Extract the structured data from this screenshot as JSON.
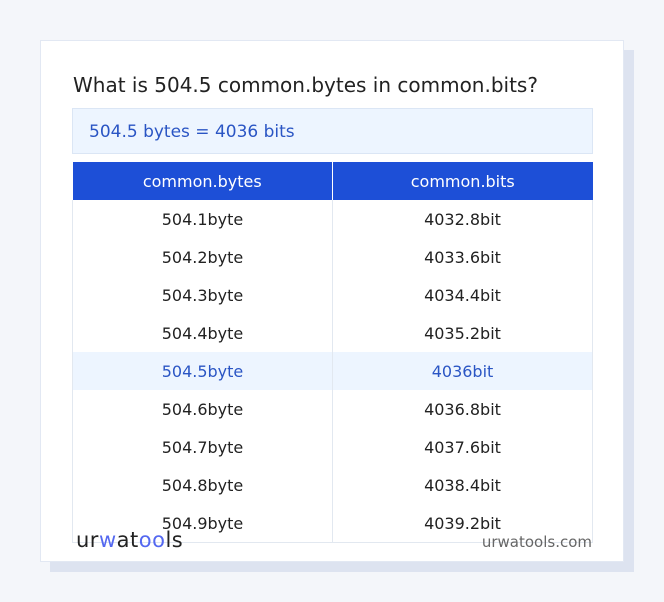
{
  "title": "What is 504.5 common.bytes in common.bits?",
  "result": "504.5 bytes = 4036 bits",
  "table": {
    "headers": [
      "common.bytes",
      "common.bits"
    ],
    "rows": [
      [
        "504.1byte",
        "4032.8bit"
      ],
      [
        "504.2byte",
        "4033.6bit"
      ],
      [
        "504.3byte",
        "4034.4bit"
      ],
      [
        "504.4byte",
        "4035.2bit"
      ],
      [
        "504.5byte",
        "4036bit"
      ],
      [
        "504.6byte",
        "4036.8bit"
      ],
      [
        "504.7byte",
        "4037.6bit"
      ],
      [
        "504.8byte",
        "4038.4bit"
      ],
      [
        "504.9byte",
        "4039.2bit"
      ]
    ],
    "highlighted_row": 4
  },
  "footer": {
    "logo": "urwatools",
    "site": "urwatools.com"
  },
  "colors": {
    "accent": "#1d4fd7",
    "highlight_bg": "#edf5ff",
    "highlight_text": "#2a55c4"
  }
}
